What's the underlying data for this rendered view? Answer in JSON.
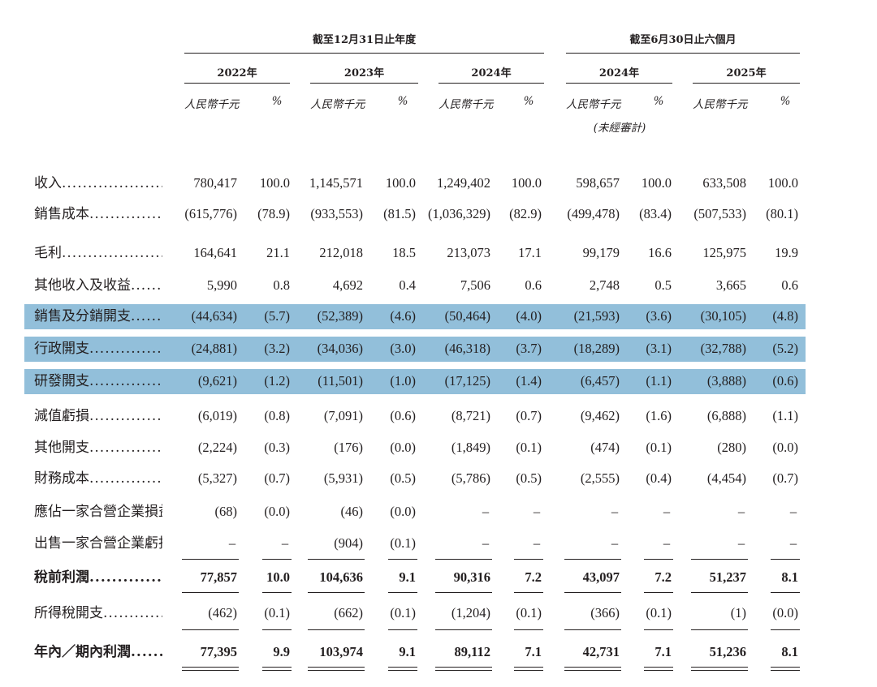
{
  "header": {
    "group_years": "截至12月31日止年度",
    "group_six_months": "截至6月30日止六個月",
    "years": [
      "2022年",
      "2023年",
      "2024年",
      "2024年",
      "2025年"
    ],
    "unit_rmb": "人民幣千元",
    "unit_pct": "%",
    "unaudited_note": "(未經審計)"
  },
  "rows": [
    {
      "label": "收入",
      "values": [
        "780,417",
        "100.0",
        "1,145,571",
        "100.0",
        "1,249,402",
        "100.0",
        "598,657",
        "100.0",
        "633,508",
        "100.0"
      ]
    },
    {
      "label": "銷售成本",
      "values": [
        "(615,776)",
        "(78.9)",
        "(933,553)",
        "(81.5)",
        "(1,036,329)",
        "(82.9)",
        "(499,478)",
        "(83.4)",
        "(507,533)",
        "(80.1)"
      ]
    },
    {
      "label": "毛利",
      "values": [
        "164,641",
        "21.1",
        "212,018",
        "18.5",
        "213,073",
        "17.1",
        "99,179",
        "16.6",
        "125,975",
        "19.9"
      ]
    },
    {
      "label": "其他收入及收益",
      "values": [
        "5,990",
        "0.8",
        "4,692",
        "0.4",
        "7,506",
        "0.6",
        "2,748",
        "0.5",
        "3,665",
        "0.6"
      ]
    },
    {
      "label": "銷售及分銷開支",
      "highlight": true,
      "values": [
        "(44,634)",
        "(5.7)",
        "(52,389)",
        "(4.6)",
        "(50,464)",
        "(4.0)",
        "(21,593)",
        "(3.6)",
        "(30,105)",
        "(4.8)"
      ]
    },
    {
      "label": "行政開支",
      "highlight": true,
      "values": [
        "(24,881)",
        "(3.2)",
        "(34,036)",
        "(3.0)",
        "(46,318)",
        "(3.7)",
        "(18,289)",
        "(3.1)",
        "(32,788)",
        "(5.2)"
      ]
    },
    {
      "label": "研發開支",
      "highlight": true,
      "values": [
        "(9,621)",
        "(1.2)",
        "(11,501)",
        "(1.0)",
        "(17,125)",
        "(1.4)",
        "(6,457)",
        "(1.1)",
        "(3,888)",
        "(0.6)"
      ]
    },
    {
      "label": "減值虧損",
      "values": [
        "(6,019)",
        "(0.8)",
        "(7,091)",
        "(0.6)",
        "(8,721)",
        "(0.7)",
        "(9,462)",
        "(1.6)",
        "(6,888)",
        "(1.1)"
      ]
    },
    {
      "label": "其他開支",
      "values": [
        "(2,224)",
        "(0.3)",
        "(176)",
        "(0.0)",
        "(1,849)",
        "(0.1)",
        "(474)",
        "(0.1)",
        "(280)",
        "(0.0)"
      ]
    },
    {
      "label": "財務成本",
      "values": [
        "(5,327)",
        "(0.7)",
        "(5,931)",
        "(0.5)",
        "(5,786)",
        "(0.5)",
        "(2,555)",
        "(0.4)",
        "(4,454)",
        "(0.7)"
      ]
    },
    {
      "label": "應佔一家合營企業損益",
      "values": [
        "(68)",
        "(0.0)",
        "(46)",
        "(0.0)",
        "–",
        "–",
        "–",
        "–",
        "–",
        "–"
      ]
    },
    {
      "label": "出售一家合營企業虧損",
      "values": [
        "–",
        "–",
        "(904)",
        "(0.1)",
        "–",
        "–",
        "–",
        "–",
        "–",
        "–"
      ]
    },
    {
      "label": "稅前利潤",
      "bold": true,
      "values": [
        "77,857",
        "10.0",
        "104,636",
        "9.1",
        "90,316",
        "7.2",
        "43,097",
        "7.2",
        "51,237",
        "8.1"
      ]
    },
    {
      "label": "所得稅開支",
      "values": [
        "(462)",
        "(0.1)",
        "(662)",
        "(0.1)",
        "(1,204)",
        "(0.1)",
        "(366)",
        "(0.1)",
        "(1)",
        "(0.0)"
      ]
    },
    {
      "label": "年內／期內利潤",
      "bold": true,
      "values": [
        "77,395",
        "9.9",
        "103,974",
        "9.1",
        "89,112",
        "7.1",
        "42,731",
        "7.1",
        "51,236",
        "8.1"
      ]
    }
  ]
}
